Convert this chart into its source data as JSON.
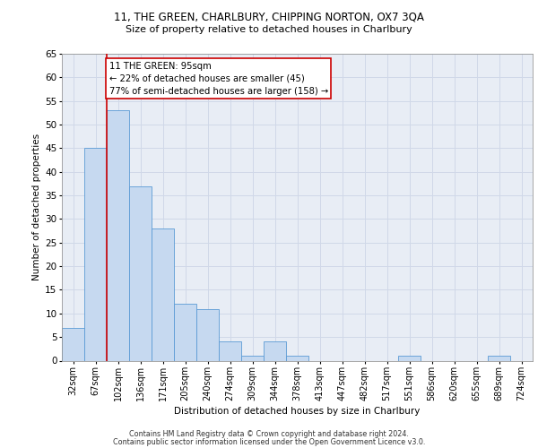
{
  "title1": "11, THE GREEN, CHARLBURY, CHIPPING NORTON, OX7 3QA",
  "title2": "Size of property relative to detached houses in Charlbury",
  "xlabel": "Distribution of detached houses by size in Charlbury",
  "ylabel": "Number of detached properties",
  "categories": [
    "32sqm",
    "67sqm",
    "102sqm",
    "136sqm",
    "171sqm",
    "205sqm",
    "240sqm",
    "274sqm",
    "309sqm",
    "344sqm",
    "378sqm",
    "413sqm",
    "447sqm",
    "482sqm",
    "517sqm",
    "551sqm",
    "586sqm",
    "620sqm",
    "655sqm",
    "689sqm",
    "724sqm"
  ],
  "values": [
    7,
    45,
    53,
    37,
    28,
    12,
    11,
    4,
    1,
    4,
    1,
    0,
    0,
    0,
    0,
    1,
    0,
    0,
    0,
    1,
    0
  ],
  "bar_color": "#c6d9f0",
  "bar_edge_color": "#5b9bd5",
  "vline_color": "#cc0000",
  "annotation_lines": [
    "11 THE GREEN: 95sqm",
    "← 22% of detached houses are smaller (45)",
    "77% of semi-detached houses are larger (158) →"
  ],
  "annotation_box_color": "#cc0000",
  "ylim": [
    0,
    65
  ],
  "yticks": [
    0,
    5,
    10,
    15,
    20,
    25,
    30,
    35,
    40,
    45,
    50,
    55,
    60,
    65
  ],
  "grid_color": "#d0d8e8",
  "background_color": "#e8edf5",
  "footer1": "Contains HM Land Registry data © Crown copyright and database right 2024.",
  "footer2": "Contains public sector information licensed under the Open Government Licence v3.0."
}
